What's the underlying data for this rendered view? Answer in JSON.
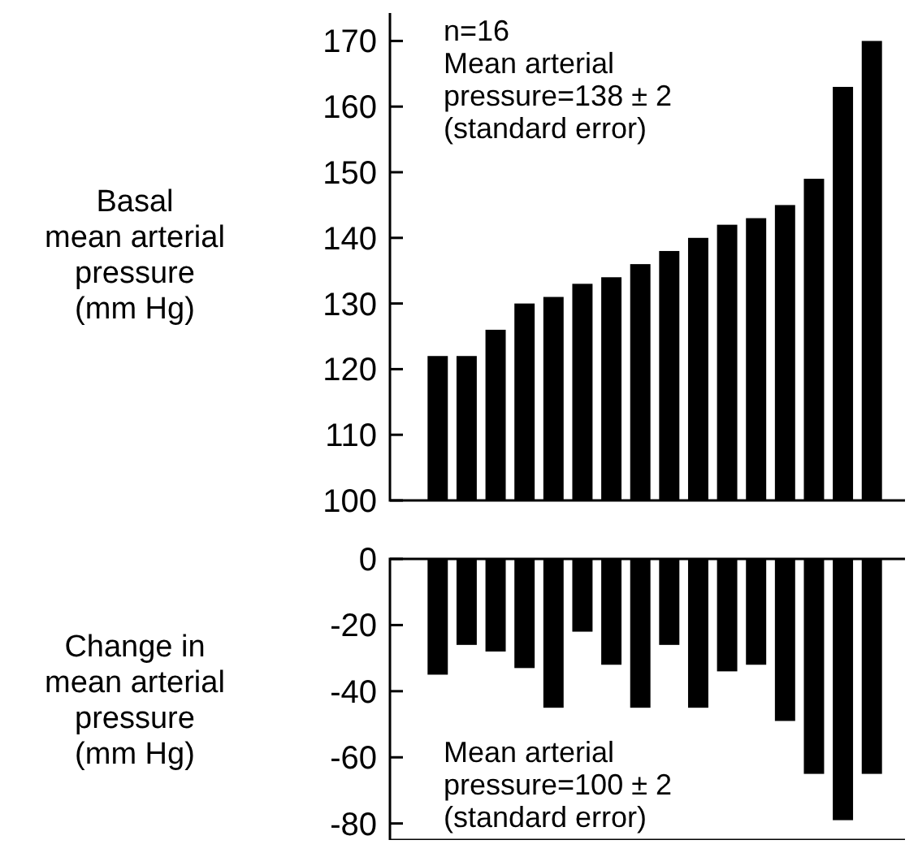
{
  "chart_data": [
    {
      "type": "bar",
      "ylabel": "Basal\nmean arterial\npressure\n(mm Hg)",
      "categories": [
        null,
        null,
        null,
        null,
        null,
        null,
        null,
        null,
        null,
        null,
        null,
        null,
        null,
        null,
        null,
        null
      ],
      "values": [
        122,
        122,
        126,
        130,
        131,
        133,
        134,
        136,
        138,
        140,
        142,
        143,
        145,
        149,
        163,
        170
      ],
      "color": "#000000",
      "ylim": [
        100,
        175
      ],
      "yticks": [
        100,
        110,
        120,
        130,
        140,
        150,
        160,
        170
      ],
      "grid": false,
      "tick_labels": "y",
      "annotations": [
        "n=16\nMean arterial\npressure=138 ± 2\n(standard error)"
      ]
    },
    {
      "type": "bar",
      "ylabel": "Change in\nmean arterial\npressure\n(mm Hg)",
      "categories": [
        null,
        null,
        null,
        null,
        null,
        null,
        null,
        null,
        null,
        null,
        null,
        null,
        null,
        null,
        null,
        null
      ],
      "values": [
        -35,
        -26,
        -28,
        -33,
        -45,
        -22,
        -32,
        -45,
        -26,
        -45,
        -34,
        -32,
        -49,
        -65,
        -79,
        -65
      ],
      "color": "#000000",
      "ylim": [
        -85,
        0
      ],
      "yticks": [
        0,
        -20,
        -40,
        -60,
        -80
      ],
      "grid": false,
      "tick_labels": "y",
      "annotations": [
        "Mean arterial\npressure=100 ± 2\n(standard error)"
      ]
    }
  ]
}
